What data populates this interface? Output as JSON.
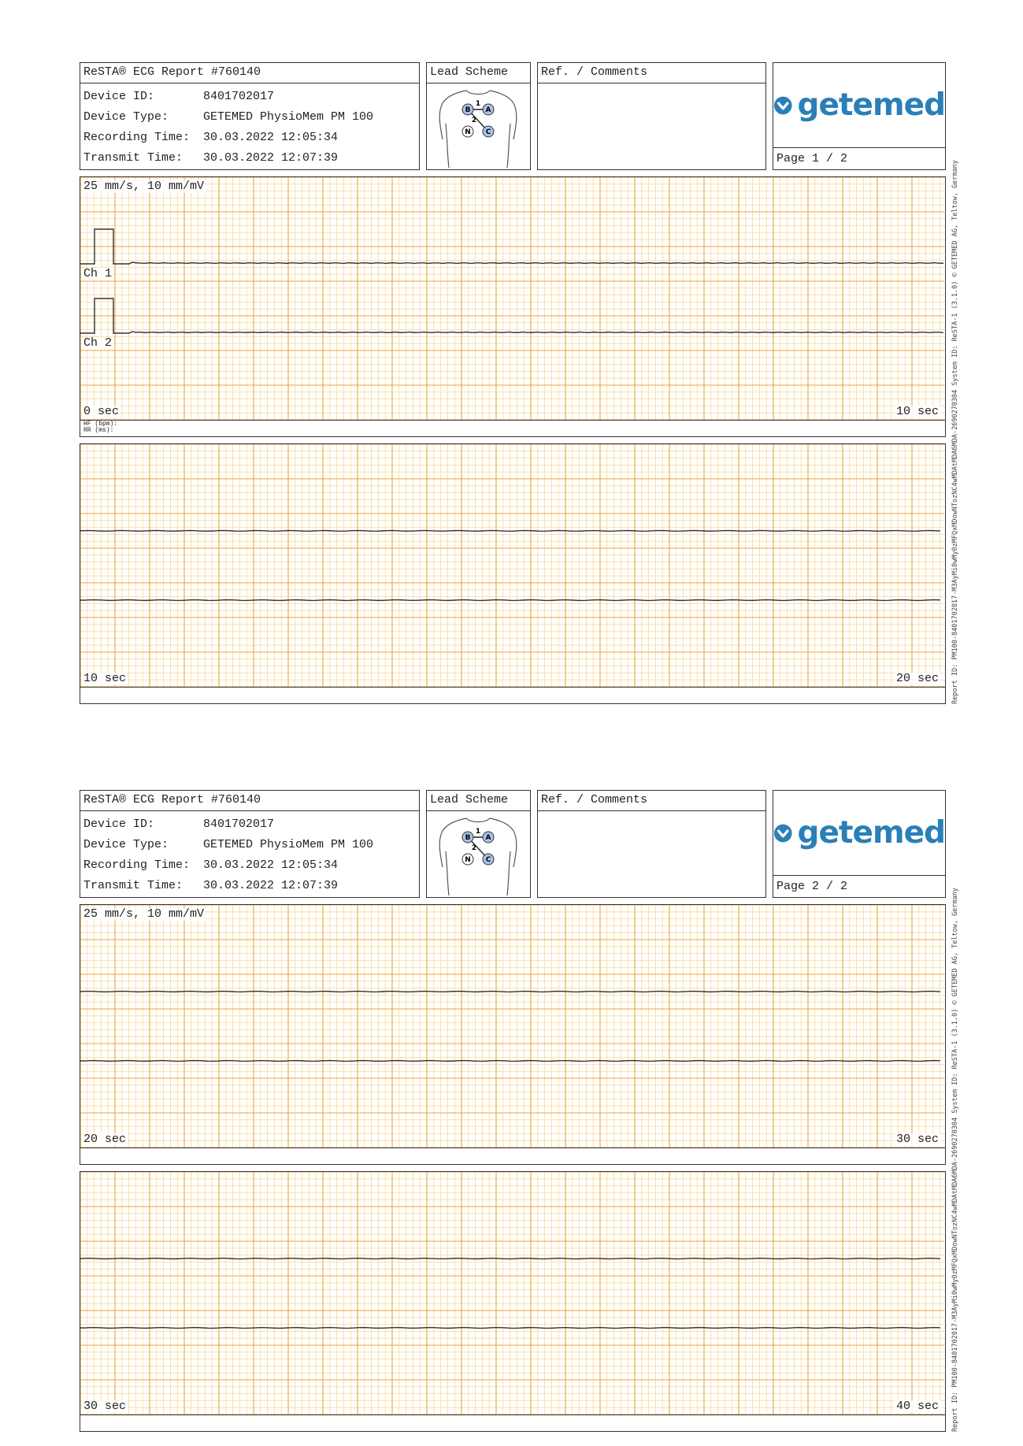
{
  "report": {
    "title": "ReSTA® ECG Report #760140",
    "device_id_label": "Device ID:",
    "device_id": "8401702017",
    "device_type_label": "Device Type:",
    "device_type": "GETEMED PhysioMem PM 100",
    "recording_time_label": "Recording Time:",
    "recording_time": "30.03.2022 12:05:34",
    "transmit_time_label": "Transmit Time:",
    "transmit_time": "30.03.2022 12:07:39"
  },
  "lead_scheme": {
    "title": "Lead Scheme",
    "labels": [
      "B",
      "A",
      "N",
      "C",
      "1",
      "2"
    ]
  },
  "comments": {
    "title": "Ref. / Comments"
  },
  "logo": {
    "text": "getemed",
    "icon": "heart-chevron-icon",
    "color": "#2a7fb8"
  },
  "pages": [
    {
      "page_label": "Page 1 / 2",
      "strips": [
        {
          "scale": "25 mm/s, 10 mm/mV",
          "ch1": "Ch 1",
          "ch2": "Ch 2",
          "start": "0 sec",
          "end": "10 sec",
          "hf_label": "HF (bpm):",
          "rr_label": "RR (ms):",
          "calibration": true
        },
        {
          "start": "10 sec",
          "end": "20 sec",
          "calibration": false
        }
      ]
    },
    {
      "page_label": "Page 2 / 2",
      "strips": [
        {
          "scale": "25 mm/s, 10 mm/mV",
          "start": "20 sec",
          "end": "30 sec",
          "calibration": false
        },
        {
          "start": "30 sec",
          "end": "40 sec",
          "calibration": false
        }
      ]
    }
  ],
  "side_text": "Report ID: PM100-8401702017-M3AyMi0wMy0zMFQxMDowNTozNC4wMDAtMDA6MDA-2690270304   System ID: ReSTA-1 (3.1.0)   © GETEMED AG, Teltow, Germany",
  "colors": {
    "grid_minor": "#f7d99a",
    "grid_major": "#eba63a",
    "trace": "#333333"
  }
}
